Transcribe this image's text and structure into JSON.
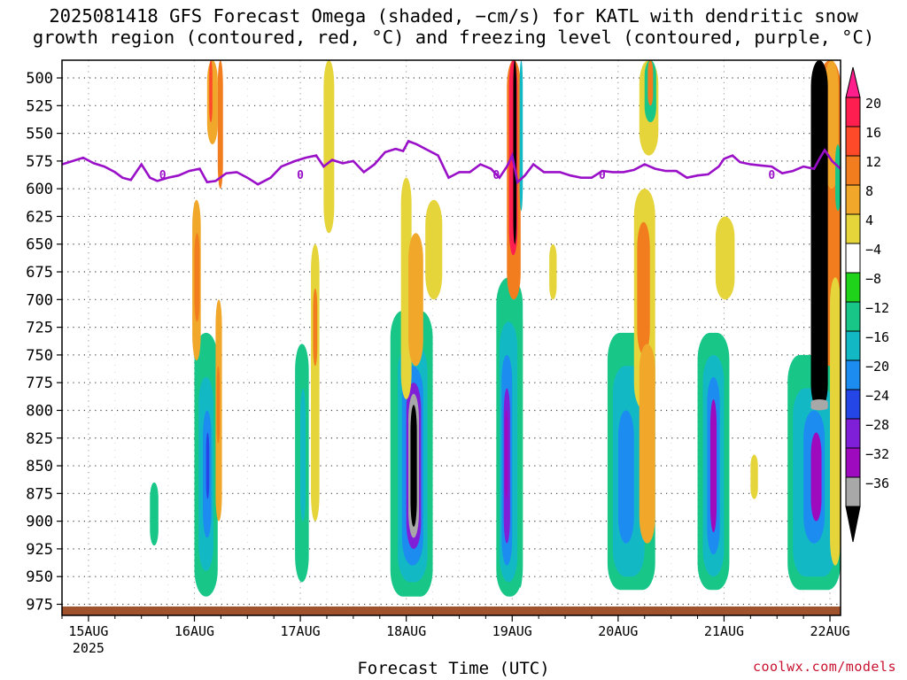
{
  "title_line1": "2025081418 GFS Forecast Omega (shaded, −cm/s) for KATL with dendritic snow",
  "title_line2": "growth region (contoured, red, °C) and freezing level (contoured, purple, °C)",
  "credit": "coolwx.com/models",
  "chart_data": {
    "type": "heatmap",
    "title": "2025081418 GFS Forecast Omega (shaded, −cm/s) for KATL with dendritic snow growth region (contoured, red, °C) and freezing level (contoured, purple, °C)",
    "xlabel": "Forecast Time (UTC)",
    "ylabel": "",
    "x_ticks": [
      "15AUG",
      "16AUG",
      "17AUG",
      "18AUG",
      "19AUG",
      "20AUG",
      "21AUG",
      "22AUG"
    ],
    "x_tick_sub": "2025",
    "y_ticks": [
      500,
      525,
      550,
      575,
      600,
      625,
      650,
      675,
      700,
      725,
      750,
      775,
      800,
      825,
      850,
      875,
      900,
      925,
      950,
      975
    ],
    "x_range_days": [
      -0.25,
      7.1
    ],
    "y_range_hpa": [
      484,
      985
    ],
    "colorbar": {
      "labels": [
        "20",
        "16",
        "12",
        "8",
        "4",
        "−4",
        "−8",
        "−12",
        "−16",
        "−20",
        "−24",
        "−28",
        "−32",
        "−36"
      ],
      "levels": [
        20,
        16,
        12,
        8,
        4,
        -4,
        -8,
        -12,
        -16,
        -20,
        -24,
        -28,
        -32,
        -36
      ],
      "colors": [
        "#ff1e50",
        "#ff4a2a",
        "#f27d1e",
        "#f0a72a",
        "#e5d43a",
        "#ffffff",
        "#1fd21a",
        "#18c788",
        "#12b9c4",
        "#1d8cf0",
        "#2546e6",
        "#7f20d8",
        "#9e0bbf",
        "#a8a8a8",
        "#000000"
      ],
      "top_arrow_color": "#ff1e8c"
    },
    "freezing_level": {
      "label": "0",
      "color": "#9a10c8",
      "points_day_hpa": [
        [
          -0.25,
          578
        ],
        [
          -0.15,
          575
        ],
        [
          -0.05,
          572
        ],
        [
          0.05,
          577
        ],
        [
          0.15,
          580
        ],
        [
          0.25,
          585
        ],
        [
          0.32,
          590
        ],
        [
          0.4,
          592
        ],
        [
          0.5,
          578
        ],
        [
          0.58,
          590
        ],
        [
          0.65,
          593
        ],
        [
          0.75,
          590
        ],
        [
          0.85,
          588
        ],
        [
          0.95,
          584
        ],
        [
          1.05,
          582
        ],
        [
          1.12,
          594
        ],
        [
          1.2,
          593
        ],
        [
          1.3,
          586
        ],
        [
          1.4,
          585
        ],
        [
          1.5,
          590
        ],
        [
          1.6,
          596
        ],
        [
          1.72,
          590
        ],
        [
          1.82,
          580
        ],
        [
          1.95,
          575
        ],
        [
          2.05,
          572
        ],
        [
          2.15,
          570
        ],
        [
          2.22,
          580
        ],
        [
          2.3,
          574
        ],
        [
          2.4,
          577
        ],
        [
          2.5,
          575
        ],
        [
          2.6,
          585
        ],
        [
          2.7,
          578
        ],
        [
          2.8,
          567
        ],
        [
          2.9,
          564
        ],
        [
          2.97,
          566
        ],
        [
          3.02,
          557
        ],
        [
          3.1,
          560
        ],
        [
          3.2,
          565
        ],
        [
          3.3,
          570
        ],
        [
          3.4,
          590
        ],
        [
          3.5,
          585
        ],
        [
          3.6,
          585
        ],
        [
          3.7,
          578
        ],
        [
          3.8,
          582
        ],
        [
          3.88,
          590
        ],
        [
          3.95,
          580
        ],
        [
          4.0,
          570
        ],
        [
          4.05,
          594
        ],
        [
          4.12,
          588
        ],
        [
          4.2,
          578
        ],
        [
          4.3,
          585
        ],
        [
          4.45,
          585
        ],
        [
          4.55,
          588
        ],
        [
          4.65,
          590
        ],
        [
          4.75,
          590
        ],
        [
          4.85,
          584
        ],
        [
          4.95,
          585
        ],
        [
          5.05,
          585
        ],
        [
          5.15,
          583
        ],
        [
          5.25,
          578
        ],
        [
          5.35,
          582
        ],
        [
          5.45,
          584
        ],
        [
          5.55,
          584
        ],
        [
          5.65,
          590
        ],
        [
          5.75,
          588
        ],
        [
          5.85,
          587
        ],
        [
          5.95,
          580
        ],
        [
          6.0,
          573
        ],
        [
          6.08,
          570
        ],
        [
          6.15,
          576
        ],
        [
          6.25,
          578
        ],
        [
          6.35,
          579
        ],
        [
          6.45,
          580
        ],
        [
          6.55,
          586
        ],
        [
          6.65,
          584
        ],
        [
          6.75,
          580
        ],
        [
          6.85,
          582
        ],
        [
          6.9,
          573
        ],
        [
          6.95,
          565
        ],
        [
          7.02,
          575
        ],
        [
          7.1,
          582
        ]
      ]
    },
    "omega_blobs": [
      {
        "x": 0.58,
        "x2": 0.66,
        "y1": 865,
        "y2": 922,
        "level": -8
      },
      {
        "x": 1.0,
        "x2": 1.22,
        "y1": 730,
        "y2": 968,
        "level": -8
      },
      {
        "x": 1.04,
        "x2": 1.18,
        "y1": 770,
        "y2": 945,
        "level": -12
      },
      {
        "x": 1.08,
        "x2": 1.16,
        "y1": 800,
        "y2": 915,
        "level": -16
      },
      {
        "x": 1.11,
        "x2": 1.14,
        "y1": 820,
        "y2": 880,
        "level": -20
      },
      {
        "x": 0.98,
        "x2": 1.06,
        "y1": 610,
        "y2": 755,
        "level": 8
      },
      {
        "x": 1.0,
        "x2": 1.05,
        "y1": 640,
        "y2": 720,
        "level": 12
      },
      {
        "x": 1.12,
        "x2": 1.22,
        "y1": 484,
        "y2": 560,
        "level": 8
      },
      {
        "x": 1.14,
        "x2": 1.17,
        "y1": 484,
        "y2": 540,
        "level": 16
      },
      {
        "x": 1.2,
        "x2": 1.26,
        "y1": 700,
        "y2": 900,
        "level": 8
      },
      {
        "x": 1.21,
        "x2": 1.24,
        "y1": 760,
        "y2": 830,
        "level": 12
      },
      {
        "x": 1.22,
        "x2": 1.27,
        "y1": 484,
        "y2": 600,
        "level": 12
      },
      {
        "x": 1.95,
        "x2": 2.08,
        "y1": 740,
        "y2": 955,
        "level": -8
      },
      {
        "x": 2.0,
        "x2": 2.05,
        "y1": 780,
        "y2": 900,
        "level": -12
      },
      {
        "x": 2.1,
        "x2": 2.18,
        "y1": 650,
        "y2": 900,
        "level": 4
      },
      {
        "x": 2.12,
        "x2": 2.16,
        "y1": 690,
        "y2": 760,
        "level": 12
      },
      {
        "x": 2.22,
        "x2": 2.32,
        "y1": 484,
        "y2": 640,
        "level": 4
      },
      {
        "x": 2.85,
        "x2": 3.25,
        "y1": 710,
        "y2": 968,
        "level": -8
      },
      {
        "x": 2.92,
        "x2": 3.2,
        "y1": 740,
        "y2": 955,
        "level": -12
      },
      {
        "x": 2.96,
        "x2": 3.16,
        "y1": 760,
        "y2": 940,
        "level": -16
      },
      {
        "x": 3.0,
        "x2": 3.14,
        "y1": 775,
        "y2": 925,
        "level": -24
      },
      {
        "x": 3.02,
        "x2": 3.12,
        "y1": 785,
        "y2": 915,
        "level": -32
      },
      {
        "x": 3.04,
        "x2": 3.1,
        "y1": 795,
        "y2": 905,
        "level": -36
      },
      {
        "x": 2.95,
        "x2": 3.05,
        "y1": 590,
        "y2": 790,
        "level": 4
      },
      {
        "x": 3.02,
        "x2": 3.16,
        "y1": 640,
        "y2": 760,
        "level": 8
      },
      {
        "x": 3.18,
        "x2": 3.34,
        "y1": 610,
        "y2": 700,
        "level": 4
      },
      {
        "x": 3.85,
        "x2": 4.1,
        "y1": 680,
        "y2": 968,
        "level": -8
      },
      {
        "x": 3.88,
        "x2": 4.05,
        "y1": 720,
        "y2": 955,
        "level": -12
      },
      {
        "x": 3.9,
        "x2": 4.0,
        "y1": 750,
        "y2": 940,
        "level": -16
      },
      {
        "x": 3.92,
        "x2": 3.98,
        "y1": 780,
        "y2": 920,
        "level": -24
      },
      {
        "x": 3.93,
        "x2": 3.96,
        "y1": 800,
        "y2": 880,
        "level": -28
      },
      {
        "x": 3.95,
        "x2": 4.08,
        "y1": 484,
        "y2": 700,
        "level": 12
      },
      {
        "x": 3.97,
        "x2": 4.05,
        "y1": 484,
        "y2": 660,
        "level": 20
      },
      {
        "x": 4.01,
        "x2": 4.04,
        "y1": 484,
        "y2": 650,
        "level": -36
      },
      {
        "x": 4.05,
        "x2": 4.1,
        "y1": 700,
        "y2": 960,
        "level": -8
      },
      {
        "x": 4.07,
        "x2": 4.1,
        "y1": 484,
        "y2": 620,
        "level": -12
      },
      {
        "x": 4.35,
        "x2": 4.42,
        "y1": 650,
        "y2": 700,
        "level": 4
      },
      {
        "x": 4.9,
        "x2": 5.35,
        "y1": 730,
        "y2": 962,
        "level": -8
      },
      {
        "x": 4.95,
        "x2": 5.25,
        "y1": 760,
        "y2": 950,
        "level": -12
      },
      {
        "x": 5.0,
        "x2": 5.15,
        "y1": 800,
        "y2": 920,
        "level": -16
      },
      {
        "x": 5.15,
        "x2": 5.35,
        "y1": 600,
        "y2": 800,
        "level": 4
      },
      {
        "x": 5.18,
        "x2": 5.3,
        "y1": 630,
        "y2": 750,
        "level": 12
      },
      {
        "x": 5.2,
        "x2": 5.35,
        "y1": 740,
        "y2": 920,
        "level": 8
      },
      {
        "x": 5.2,
        "x2": 5.38,
        "y1": 484,
        "y2": 570,
        "level": 4
      },
      {
        "x": 5.25,
        "x2": 5.36,
        "y1": 484,
        "y2": 540,
        "level": -8
      },
      {
        "x": 5.28,
        "x2": 5.33,
        "y1": 484,
        "y2": 525,
        "level": 12
      },
      {
        "x": 5.75,
        "x2": 6.05,
        "y1": 730,
        "y2": 962,
        "level": -8
      },
      {
        "x": 5.8,
        "x2": 6.0,
        "y1": 750,
        "y2": 950,
        "level": -12
      },
      {
        "x": 5.84,
        "x2": 5.96,
        "y1": 770,
        "y2": 930,
        "level": -16
      },
      {
        "x": 5.87,
        "x2": 5.93,
        "y1": 790,
        "y2": 910,
        "level": -28
      },
      {
        "x": 5.92,
        "x2": 6.1,
        "y1": 625,
        "y2": 700,
        "level": 4
      },
      {
        "x": 6.25,
        "x2": 6.32,
        "y1": 840,
        "y2": 880,
        "level": 4
      },
      {
        "x": 6.6,
        "x2": 7.1,
        "y1": 750,
        "y2": 962,
        "level": -8
      },
      {
        "x": 6.65,
        "x2": 7.05,
        "y1": 780,
        "y2": 950,
        "level": -12
      },
      {
        "x": 6.75,
        "x2": 6.95,
        "y1": 800,
        "y2": 920,
        "level": -16
      },
      {
        "x": 6.82,
        "x2": 6.92,
        "y1": 820,
        "y2": 900,
        "level": -28
      },
      {
        "x": 6.9,
        "x2": 7.1,
        "y1": 484,
        "y2": 760,
        "level": 12
      },
      {
        "x": 6.95,
        "x2": 7.08,
        "y1": 484,
        "y2": 600,
        "level": 8
      },
      {
        "x": 7.0,
        "x2": 7.1,
        "y1": 680,
        "y2": 940,
        "level": 4
      },
      {
        "x": 7.05,
        "x2": 7.1,
        "y1": 560,
        "y2": 620,
        "level": -8
      },
      {
        "x": 6.82,
        "x2": 6.98,
        "y1": 484,
        "y2": 800,
        "level": -36
      },
      {
        "x": 6.82,
        "x2": 6.98,
        "y1": 790,
        "y2": 800,
        "level": -32
      }
    ]
  }
}
